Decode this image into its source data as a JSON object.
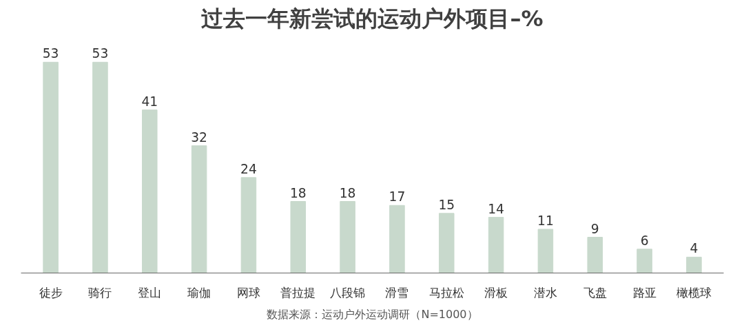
{
  "chart_data": {
    "type": "bar",
    "title": "过去一年新尝试的运动户外项目–%",
    "categories": [
      "徒步",
      "骑行",
      "登山",
      "瑜伽",
      "网球",
      "普拉提",
      "八段锦",
      "滑雪",
      "马拉松",
      "滑板",
      "潜水",
      "飞盘",
      "路亚",
      "橄榄球"
    ],
    "values": [
      53,
      53,
      41,
      32,
      24,
      18,
      18,
      17,
      15,
      14,
      11,
      9,
      6,
      4
    ],
    "color": "#c8d9cc",
    "data_labels": true,
    "grid": false,
    "annotations": [
      "数据来源：运动户外运动调研（N=1000）"
    ]
  }
}
